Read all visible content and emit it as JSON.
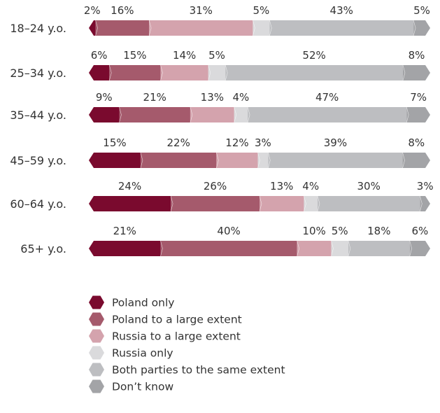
{
  "chart_data": {
    "type": "bar",
    "stacked": true,
    "orientation": "horizontal",
    "unit": "%",
    "xlim": [
      0,
      100
    ],
    "legend_position": "bottom",
    "categories": [
      "18–24 y.o.",
      "25–34 y.o.",
      "35–44 y.o.",
      "45–59 y.o.",
      "60–64 y.o.",
      "65+ y.o."
    ],
    "series": [
      {
        "name": "Poland only",
        "color": "#7a0a2e",
        "values": [
          2,
          6,
          9,
          15,
          24,
          21
        ]
      },
      {
        "name": "Poland to a large extent",
        "color": "#a55a6c",
        "values": [
          16,
          15,
          21,
          22,
          26,
          40
        ]
      },
      {
        "name": "Russia to a large extent",
        "color": "#d4a3ad",
        "values": [
          31,
          14,
          13,
          12,
          13,
          10
        ]
      },
      {
        "name": "Russia only",
        "color": "#dadadc",
        "values": [
          5,
          5,
          4,
          3,
          4,
          5
        ]
      },
      {
        "name": "Both parties to the same extent",
        "color": "#bdbec1",
        "values": [
          43,
          52,
          47,
          39,
          30,
          18
        ]
      },
      {
        "name": "Don’t know",
        "color": "#a3a4a7",
        "values": [
          5,
          8,
          7,
          8,
          3,
          6
        ]
      }
    ]
  }
}
